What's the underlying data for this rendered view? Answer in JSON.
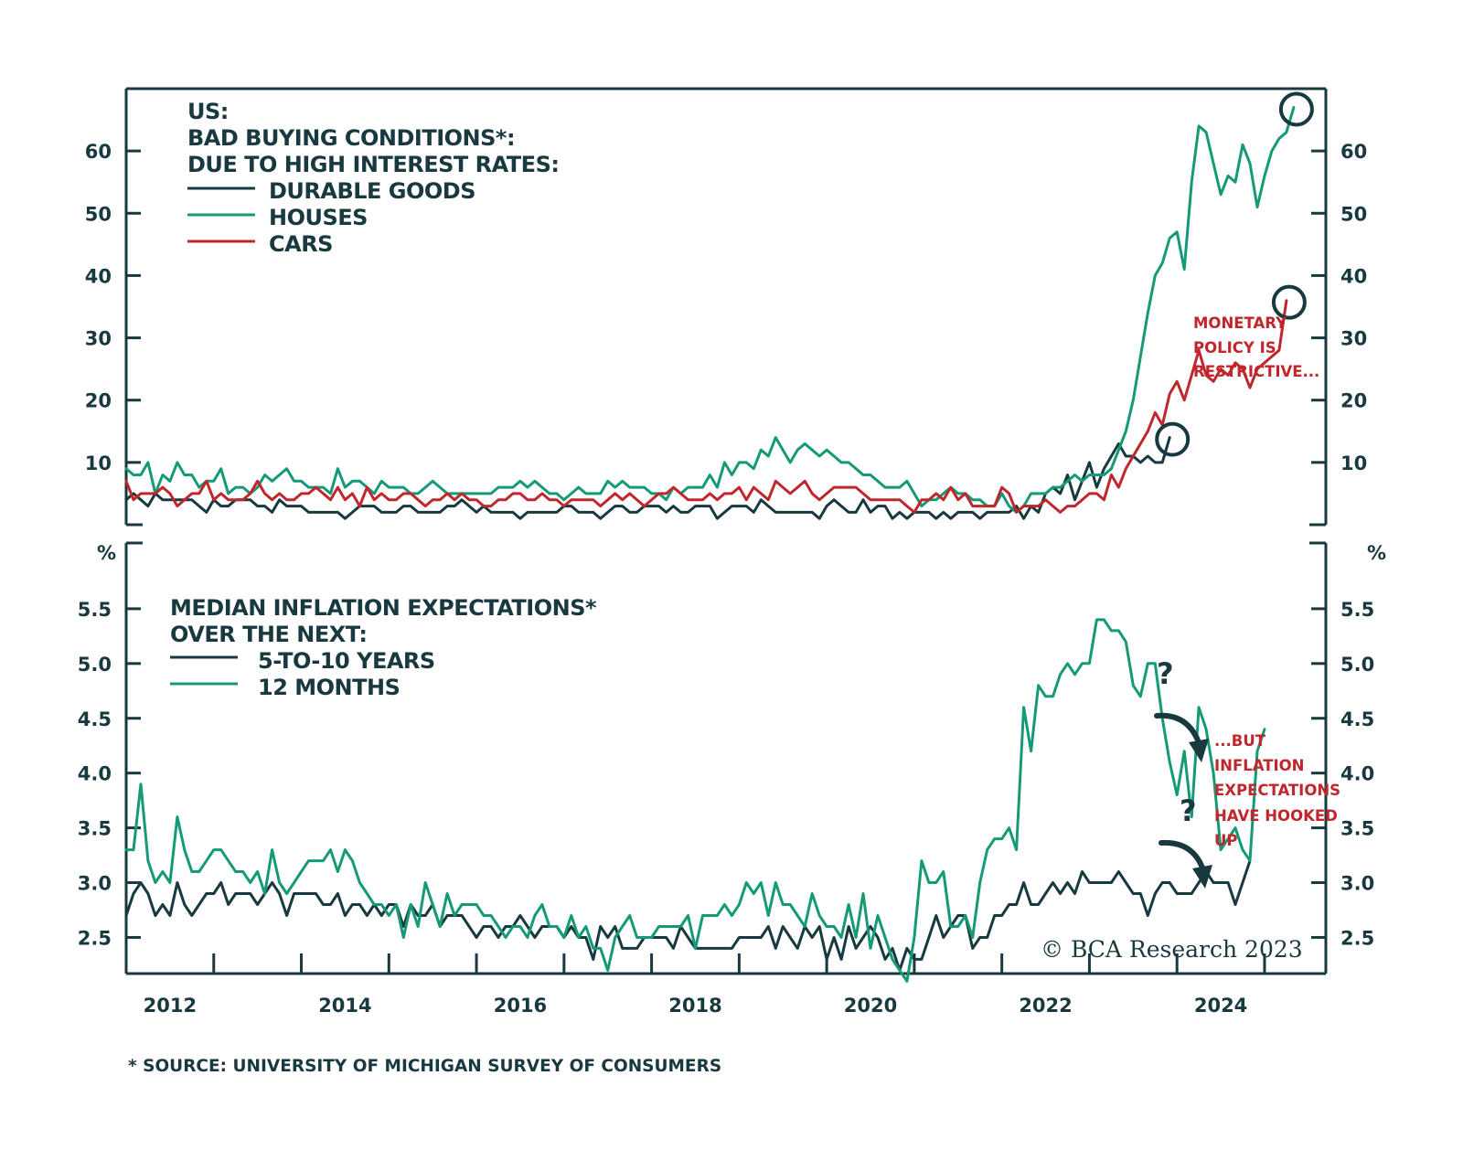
{
  "chart_data": [
    {
      "type": "line",
      "panel": "top",
      "title_lines": [
        "US:",
        "BAD BUYING CONDITIONS*:",
        "DUE TO HIGH INTEREST RATES:"
      ],
      "ylabel": "",
      "ylim": [
        0,
        70
      ],
      "yticks": [
        10,
        20,
        30,
        40,
        50,
        60
      ],
      "ytick_labels": [
        "10",
        "20",
        "30",
        "40",
        "50",
        "60"
      ],
      "x_start": 2012.0,
      "x_step_months": 1,
      "legend_placement": "top-left",
      "series": [
        {
          "name": "DURABLE GOODS",
          "color": "#17393f",
          "values": [
            4,
            5,
            4,
            3,
            5,
            4,
            4,
            4,
            4,
            4,
            3,
            2,
            4,
            3,
            3,
            4,
            4,
            4,
            3,
            3,
            2,
            4,
            3,
            3,
            3,
            2,
            2,
            2,
            2,
            2,
            1,
            2,
            3,
            3,
            3,
            2,
            2,
            2,
            3,
            3,
            2,
            2,
            2,
            2,
            3,
            3,
            4,
            3,
            2,
            3,
            2,
            2,
            2,
            2,
            1,
            2,
            2,
            2,
            2,
            2,
            3,
            3,
            2,
            2,
            2,
            1,
            2,
            3,
            3,
            2,
            2,
            3,
            3,
            3,
            2,
            3,
            2,
            2,
            3,
            3,
            3,
            1,
            2,
            3,
            3,
            3,
            2,
            4,
            3,
            2,
            2,
            2,
            2,
            2,
            2,
            1,
            3,
            4,
            3,
            2,
            2,
            4,
            2,
            3,
            3,
            1,
            2,
            1,
            2,
            2,
            2,
            1,
            2,
            1,
            2,
            2,
            2,
            1,
            2,
            2,
            2,
            2,
            3,
            1,
            3,
            2,
            5,
            6,
            5,
            8,
            4,
            7,
            10,
            6,
            9,
            11,
            13,
            11,
            11,
            10,
            11,
            10,
            10,
            14
          ]
        },
        {
          "name": "HOUSES",
          "color": "#159a78",
          "values": [
            9,
            8,
            8,
            10,
            5,
            8,
            7,
            10,
            8,
            8,
            6,
            7,
            7,
            9,
            5,
            6,
            6,
            5,
            6,
            8,
            7,
            8,
            9,
            7,
            7,
            6,
            6,
            6,
            5,
            9,
            6,
            7,
            7,
            6,
            5,
            7,
            6,
            6,
            6,
            5,
            5,
            6,
            7,
            6,
            5,
            5,
            5,
            5,
            5,
            5,
            5,
            6,
            6,
            6,
            7,
            6,
            7,
            6,
            5,
            5,
            4,
            5,
            6,
            5,
            5,
            5,
            7,
            6,
            7,
            6,
            6,
            6,
            5,
            5,
            4,
            6,
            5,
            6,
            6,
            6,
            8,
            6,
            10,
            8,
            10,
            10,
            9,
            12,
            11,
            14,
            12,
            10,
            12,
            13,
            12,
            11,
            12,
            11,
            10,
            10,
            9,
            8,
            8,
            7,
            6,
            6,
            6,
            7,
            5,
            3,
            4,
            4,
            5,
            6,
            5,
            5,
            4,
            4,
            3,
            3,
            5,
            3,
            2,
            3,
            5,
            5,
            5,
            6,
            6,
            7,
            8,
            7,
            8,
            8,
            8,
            9,
            12,
            15,
            20,
            27,
            34,
            40,
            42,
            46,
            47,
            41,
            55,
            64,
            63,
            58,
            53,
            56,
            55,
            61,
            58,
            51,
            56,
            60,
            62,
            63,
            67
          ]
        },
        {
          "name": "CARS",
          "color": "#c0272d",
          "values": [
            7,
            4,
            5,
            5,
            5,
            6,
            5,
            3,
            4,
            5,
            5,
            7,
            4,
            5,
            4,
            4,
            4,
            5,
            7,
            5,
            4,
            5,
            4,
            4,
            5,
            5,
            6,
            5,
            4,
            6,
            4,
            5,
            3,
            6,
            4,
            5,
            4,
            4,
            5,
            5,
            4,
            3,
            4,
            4,
            5,
            4,
            5,
            4,
            4,
            3,
            3,
            4,
            4,
            5,
            5,
            4,
            4,
            5,
            4,
            4,
            3,
            4,
            4,
            4,
            4,
            3,
            4,
            5,
            4,
            5,
            4,
            3,
            4,
            5,
            5,
            6,
            5,
            4,
            4,
            4,
            5,
            4,
            5,
            5,
            6,
            4,
            6,
            5,
            4,
            7,
            6,
            5,
            6,
            7,
            5,
            4,
            5,
            6,
            6,
            6,
            6,
            5,
            4,
            4,
            4,
            4,
            4,
            3,
            2,
            4,
            4,
            5,
            4,
            6,
            4,
            5,
            3,
            3,
            3,
            3,
            6,
            5,
            2,
            3,
            3,
            3,
            4,
            3,
            2,
            3,
            3,
            4,
            5,
            5,
            4,
            8,
            6,
            9,
            11,
            13,
            15,
            18,
            16,
            21,
            23,
            20,
            24,
            28,
            24,
            23,
            25,
            24,
            26,
            25,
            22,
            25,
            26,
            27,
            28,
            36
          ]
        }
      ],
      "annotations": [
        {
          "text_lines": [
            "MONETARY",
            "POLICY IS",
            "RESTRICTIVE..."
          ],
          "color": "#c0272d"
        }
      ],
      "highlight_circles": [
        "HOUSES last point",
        "CARS last point",
        "DURABLE GOODS last point"
      ]
    },
    {
      "type": "line",
      "panel": "bottom",
      "title_lines": [
        "MEDIAN INFLATION EXPECTATIONS*",
        "OVER THE NEXT:"
      ],
      "ylabel": "%",
      "ylim": [
        2.17,
        6.1
      ],
      "yticks": [
        2.5,
        3.0,
        3.5,
        4.0,
        4.5,
        5.0,
        5.5
      ],
      "ytick_labels": [
        "2.5",
        "3.0",
        "3.5",
        "4.0",
        "4.5",
        "5.0",
        "5.5"
      ],
      "x_start": 2012.0,
      "x_step_months": 1,
      "legend_placement": "top-left",
      "series": [
        {
          "name": "5-TO-10 YEARS",
          "color": "#17393f",
          "values": [
            2.7,
            2.9,
            3.0,
            2.9,
            2.7,
            2.8,
            2.7,
            3.0,
            2.8,
            2.7,
            2.8,
            2.9,
            2.9,
            3.0,
            2.8,
            2.9,
            2.9,
            2.9,
            2.8,
            2.9,
            3.0,
            2.9,
            2.7,
            2.9,
            2.9,
            2.9,
            2.9,
            2.8,
            2.8,
            2.9,
            2.7,
            2.8,
            2.8,
            2.7,
            2.8,
            2.7,
            2.8,
            2.8,
            2.6,
            2.8,
            2.7,
            2.7,
            2.8,
            2.6,
            2.7,
            2.7,
            2.7,
            2.6,
            2.5,
            2.6,
            2.6,
            2.5,
            2.6,
            2.6,
            2.7,
            2.6,
            2.5,
            2.6,
            2.6,
            2.6,
            2.5,
            2.6,
            2.5,
            2.5,
            2.3,
            2.6,
            2.5,
            2.6,
            2.4,
            2.4,
            2.4,
            2.5,
            2.5,
            2.5,
            2.5,
            2.4,
            2.6,
            2.5,
            2.4,
            2.4,
            2.4,
            2.4,
            2.4,
            2.4,
            2.5,
            2.5,
            2.5,
            2.5,
            2.6,
            2.4,
            2.6,
            2.5,
            2.4,
            2.6,
            2.5,
            2.6,
            2.3,
            2.5,
            2.3,
            2.6,
            2.4,
            2.5,
            2.6,
            2.5,
            2.3,
            2.4,
            2.2,
            2.4,
            2.3,
            2.3,
            2.5,
            2.7,
            2.5,
            2.6,
            2.7,
            2.7,
            2.4,
            2.5,
            2.5,
            2.7,
            2.7,
            2.8,
            2.8,
            3.0,
            2.8,
            2.8,
            2.9,
            3.0,
            2.9,
            3.0,
            2.9,
            3.1,
            3.0,
            3.0,
            3.0,
            3.0,
            3.1,
            3.0,
            2.9,
            2.9,
            2.7,
            2.9,
            3.0,
            3.0,
            2.9,
            2.9,
            2.9,
            3.0,
            3.1,
            3.0,
            3.0,
            3.0,
            2.8,
            3.0,
            3.2
          ]
        },
        {
          "name": "12 MONTHS",
          "color": "#159a78",
          "values": [
            3.3,
            3.3,
            3.9,
            3.2,
            3.0,
            3.1,
            3.0,
            3.6,
            3.3,
            3.1,
            3.1,
            3.2,
            3.3,
            3.3,
            3.2,
            3.1,
            3.1,
            3.0,
            3.1,
            2.9,
            3.3,
            3.0,
            2.9,
            3.0,
            3.1,
            3.2,
            3.2,
            3.2,
            3.3,
            3.1,
            3.3,
            3.2,
            3.0,
            2.9,
            2.8,
            2.8,
            2.7,
            2.8,
            2.5,
            2.8,
            2.6,
            3.0,
            2.8,
            2.6,
            2.9,
            2.7,
            2.8,
            2.8,
            2.8,
            2.7,
            2.7,
            2.6,
            2.5,
            2.6,
            2.6,
            2.5,
            2.7,
            2.8,
            2.6,
            2.6,
            2.5,
            2.7,
            2.5,
            2.6,
            2.4,
            2.4,
            2.2,
            2.5,
            2.6,
            2.7,
            2.5,
            2.5,
            2.5,
            2.6,
            2.6,
            2.6,
            2.6,
            2.7,
            2.4,
            2.7,
            2.7,
            2.7,
            2.8,
            2.7,
            2.8,
            3.0,
            2.9,
            3.0,
            2.7,
            3.0,
            2.8,
            2.8,
            2.7,
            2.6,
            2.9,
            2.7,
            2.6,
            2.6,
            2.5,
            2.8,
            2.5,
            2.9,
            2.4,
            2.7,
            2.5,
            2.3,
            2.2,
            2.1,
            2.5,
            3.2,
            3.0,
            3.0,
            3.1,
            2.6,
            2.6,
            2.7,
            2.5,
            3.0,
            3.3,
            3.4,
            3.4,
            3.5,
            3.3,
            4.6,
            4.2,
            4.8,
            4.7,
            4.7,
            4.9,
            5.0,
            4.9,
            5.0,
            5.0,
            5.4,
            5.4,
            5.3,
            5.3,
            5.2,
            4.8,
            4.7,
            5.0,
            5.0,
            4.5,
            4.1,
            3.8,
            4.2,
            3.6,
            4.6,
            4.4,
            4.0,
            3.3,
            3.4,
            3.5,
            3.3,
            3.2,
            4.2,
            4.4
          ]
        }
      ],
      "annotations": [
        {
          "text_lines": [
            "...BUT",
            "INFLATION",
            "EXPECTATIONS",
            "HAVE HOOKED",
            "UP"
          ],
          "color": "#c0272d"
        },
        {
          "text": "?",
          "note": "question mark above 12-month line"
        },
        {
          "text": "?",
          "note": "question mark above 5-to-10 year line"
        }
      ]
    }
  ],
  "x_axis": {
    "labels": [
      "2012",
      "2014",
      "2016",
      "2018",
      "2020",
      "2022",
      "2024"
    ],
    "label_years": [
      2012,
      2014,
      2016,
      2018,
      2020,
      2022,
      2024
    ],
    "tick_years": [
      2013,
      2014,
      2015,
      2016,
      2017,
      2018,
      2019,
      2020,
      2021,
      2022,
      2023,
      2024,
      2025
    ],
    "range": [
      2012.0,
      2025.7
    ]
  },
  "text": {
    "top_title": [
      "US:",
      "BAD BUYING CONDITIONS*:",
      "DUE TO HIGH INTEREST RATES:"
    ],
    "top_legend": [
      "DURABLE GOODS",
      "HOUSES",
      "CARS"
    ],
    "top_annotation": [
      "MONETARY",
      "POLICY IS",
      "RESTRICTIVE..."
    ],
    "bottom_title": [
      "MEDIAN INFLATION EXPECTATIONS*",
      "OVER THE NEXT:"
    ],
    "bottom_legend": [
      "5-TO-10 YEARS",
      "12 MONTHS"
    ],
    "bottom_annotation": [
      "...BUT",
      "INFLATION",
      "EXPECTATIONS",
      "HAVE HOOKED",
      "UP"
    ],
    "question_mark": "?",
    "percent_unit": "%",
    "copyright": "© BCA Research 2023",
    "source": "* SOURCE: UNIVERSITY OF MICHIGAN SURVEY OF CONSUMERS"
  },
  "colors": {
    "ink": "#17393f",
    "green": "#159a78",
    "red": "#c0272d"
  }
}
